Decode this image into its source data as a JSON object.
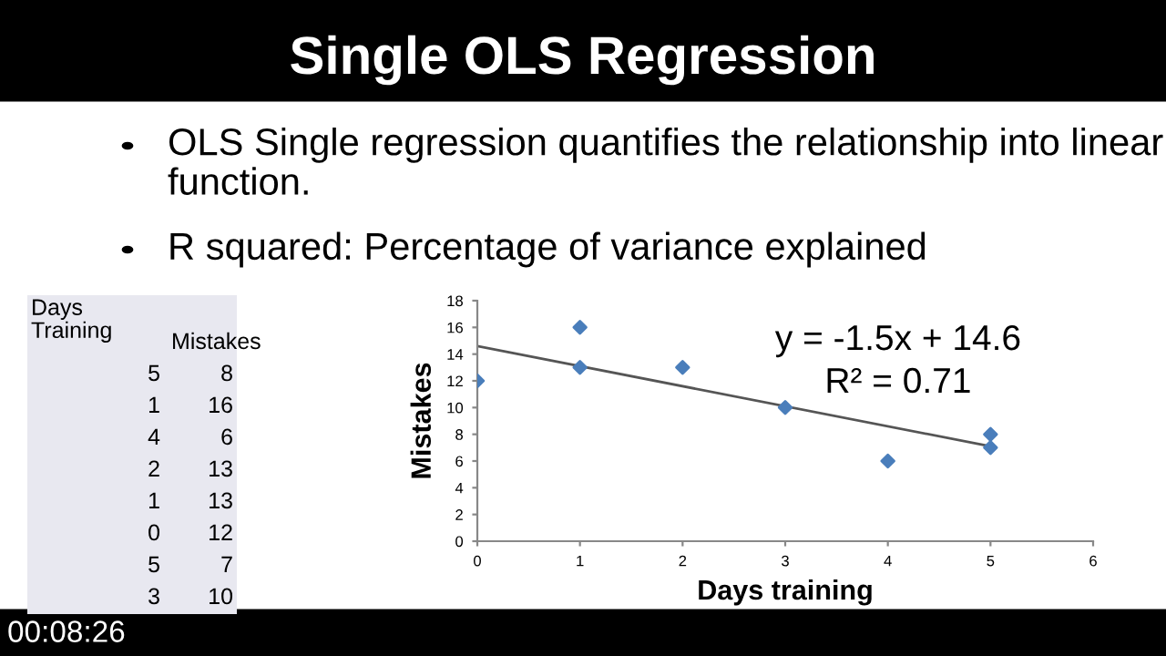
{
  "chart_data": [
    {
      "type": "scatter",
      "title": "Single OLS Regression",
      "xlabel": "Days training",
      "ylabel": "Mistakes",
      "series": [
        {
          "type": "scatter",
          "color": "#4a7ebb",
          "x": [
            5,
            1,
            4,
            2,
            1,
            0,
            5,
            3
          ],
          "values": [
            8,
            16,
            6,
            13,
            13,
            12,
            7,
            10
          ],
          "marker": "diamond"
        },
        {
          "type": "line",
          "color": "#555555",
          "x": [
            0,
            5
          ],
          "values": [
            14.6,
            7.1
          ],
          "marker": "none",
          "line_style": "solid"
        }
      ],
      "xlim": [
        0,
        6
      ],
      "xticks": [
        0,
        1,
        2,
        3,
        4,
        5,
        6
      ],
      "ylim": [
        0,
        18
      ],
      "yticks": [
        0,
        2,
        4,
        6,
        8,
        10,
        12,
        14,
        16,
        18
      ],
      "grid": false,
      "legend": false,
      "annotations": [
        "y = -1.5x + 14.6",
        "R² = 0.71",
        "OLS Single regression quantifies the relationship into linear function.",
        "R squared: Percentage of variance explained",
        "00:08:26"
      ]
    },
    {
      "type": "other",
      "annotations": [
        "Days Training",
        "Mistakes",
        "5",
        "8",
        "1",
        "16",
        "4",
        "6",
        "2",
        "13",
        "1",
        "13",
        "0",
        "12",
        "5",
        "7",
        "3",
        "10"
      ]
    }
  ]
}
